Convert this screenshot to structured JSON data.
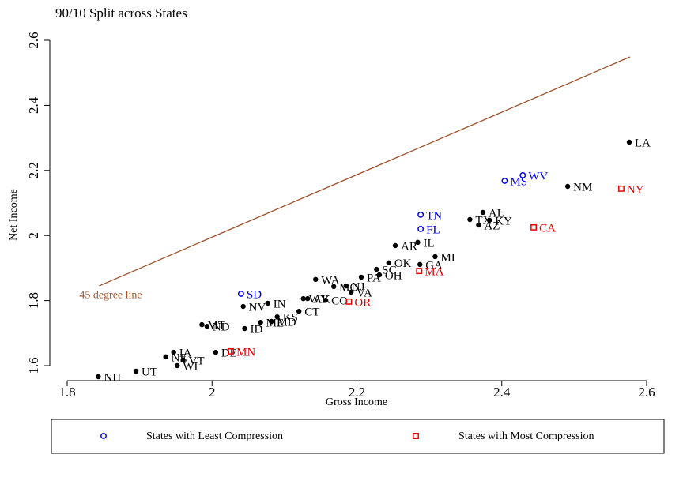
{
  "chart_data": {
    "type": "scatter",
    "title": "90/10 Split across States",
    "x_label": "Gross Income",
    "y_label": "Net Income",
    "xlim": [
      1.8,
      2.6
    ],
    "ylim": [
      1.6,
      2.6
    ],
    "xticks": [
      1.8,
      2,
      2.2,
      2.4,
      2.6
    ],
    "yticks": [
      1.6,
      1.8,
      2,
      2.2,
      2.4,
      2.6
    ],
    "reference_line": {
      "label": "45 degree line",
      "color": "#a0522d",
      "x": [
        1.844,
        2.577
      ],
      "y": [
        1.845,
        2.549
      ]
    },
    "legend_position": "bottom",
    "series": [
      {
        "color": "#000000",
        "marker": "dot",
        "labels": [
          "LA",
          "NM",
          "AL",
          "TX",
          "KY",
          "AZ",
          "IL",
          "AR",
          "MI",
          "OK",
          "GA",
          "SC",
          "PA",
          "OH",
          "WA",
          "MO",
          "NJ",
          "VA",
          "WY",
          "AK",
          "CO",
          "CT",
          "IN",
          "NV",
          "KS",
          "MD",
          "ME",
          "ID",
          "MT",
          "ND",
          "DE",
          "IA",
          "NE",
          "VT",
          "WI",
          "UT",
          "NH"
        ],
        "x": [
          2.576,
          2.491,
          2.374,
          2.356,
          2.383,
          2.368,
          2.284,
          2.253,
          2.308,
          2.244,
          2.287,
          2.227,
          2.206,
          2.231,
          2.143,
          2.168,
          2.185,
          2.192,
          2.126,
          2.132,
          2.157,
          2.12,
          2.077,
          2.043,
          2.09,
          2.082,
          2.067,
          2.045,
          1.986,
          1.993,
          2.005,
          1.947,
          1.936,
          1.96,
          1.952,
          1.895,
          1.843
        ],
        "values": [
          2.287,
          2.151,
          2.071,
          2.049,
          2.047,
          2.032,
          1.979,
          1.969,
          1.935,
          1.916,
          1.911,
          1.896,
          1.872,
          1.879,
          1.865,
          1.843,
          1.845,
          1.826,
          1.806,
          1.806,
          1.801,
          1.767,
          1.792,
          1.782,
          1.75,
          1.736,
          1.733,
          1.714,
          1.726,
          1.721,
          1.641,
          1.641,
          1.627,
          1.617,
          1.6,
          1.583,
          1.566
        ]
      },
      {
        "name": "States with Least Compression",
        "color": "#0000ee",
        "marker": "circle",
        "labels": [
          "WV",
          "MS",
          "TN",
          "FL",
          "SD"
        ],
        "x": [
          2.429,
          2.404,
          2.288,
          2.288,
          2.04
        ],
        "values": [
          2.185,
          2.168,
          2.064,
          2.02,
          1.821
        ]
      },
      {
        "name": "States with Most Compression",
        "color": "#ee0000",
        "marker": "square",
        "labels": [
          "NY",
          "CA",
          "MA",
          "OR",
          "MN"
        ],
        "x": [
          2.565,
          2.444,
          2.286,
          2.189,
          2.026
        ],
        "values": [
          2.144,
          2.025,
          1.891,
          1.797,
          1.644
        ]
      }
    ]
  }
}
